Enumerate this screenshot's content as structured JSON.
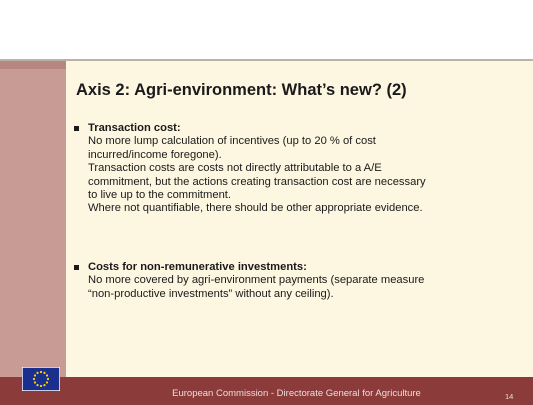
{
  "slide": {
    "title": "Axis 2: Agri-environment: What’s new? (2)",
    "bullets": [
      {
        "heading": "Transaction cost:",
        "lines": [
          "No more lump calculation of incentives (up to 20 % of cost",
          "incurred/income foregone).",
          "Transaction costs are costs not directly attributable to a A/E",
          "commitment, but the actions creating transaction cost are necessary",
          "to live up to the commitment.",
          "Where not quantifiable, there should be other appropriate evidence."
        ]
      },
      {
        "heading": "Costs for non-remunerative investments:",
        "lines": [
          "No more covered by agri-environment payments (separate measure",
          "“non-productive investments” without any ceiling)."
        ]
      }
    ],
    "footer": "European Commission - Directorate General for Agriculture",
    "page_number": "14"
  }
}
